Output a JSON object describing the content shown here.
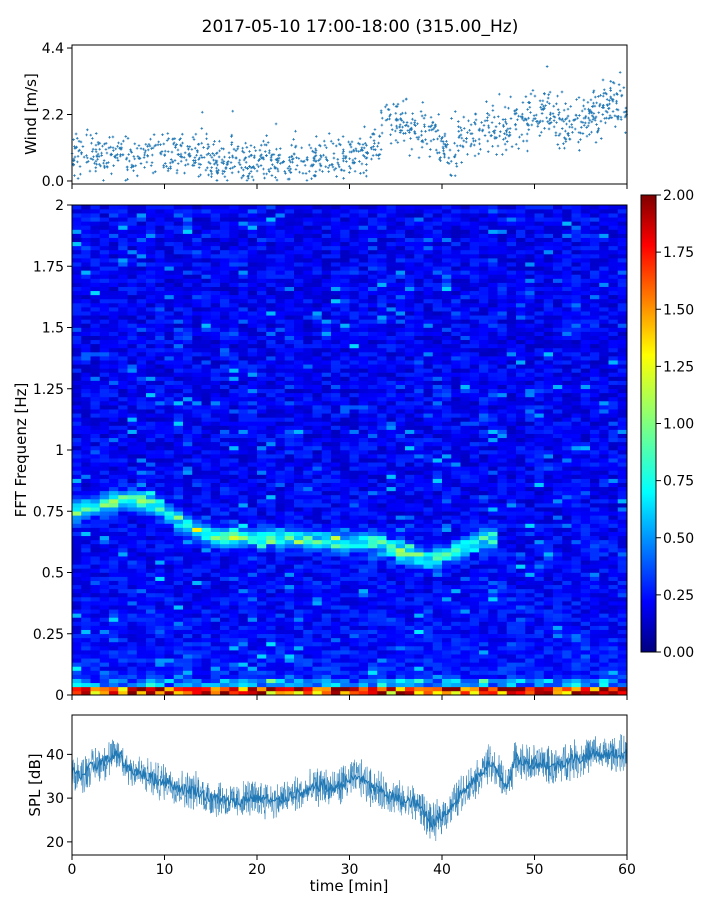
{
  "title": "2017-05-10 17:00-18:00 (315.00_Hz)",
  "chart_data": [
    {
      "type": "scatter",
      "ylabel": "Wind [m/s]",
      "ylim": [
        -0.1,
        4.5
      ],
      "yticks": [
        "0.0",
        "2.2",
        "4.4"
      ],
      "ytick_values": [
        0.0,
        2.2,
        4.4
      ],
      "xlim": [
        0,
        60
      ],
      "color": "#1f77b4",
      "points_x": [
        0,
        1,
        2,
        3,
        4,
        5,
        6,
        7,
        8,
        9,
        10,
        11,
        12,
        13,
        14,
        15,
        16,
        17,
        18,
        19,
        20,
        21,
        22,
        23,
        24,
        25,
        26,
        27,
        28,
        29,
        30,
        31,
        32,
        33,
        34,
        35,
        36,
        37,
        38,
        39,
        40,
        41,
        42,
        43,
        44,
        45,
        46,
        47,
        48,
        49,
        50,
        51,
        52,
        53,
        54,
        55,
        56,
        57,
        58,
        59,
        60
      ],
      "points_y": [
        0.9,
        0.8,
        0.9,
        0.8,
        0.9,
        1.0,
        0.7,
        0.8,
        0.9,
        0.8,
        0.9,
        0.9,
        0.8,
        0.9,
        1.0,
        0.7,
        0.6,
        0.6,
        0.7,
        0.6,
        0.7,
        0.7,
        0.6,
        0.6,
        0.7,
        0.5,
        0.6,
        0.8,
        0.7,
        0.8,
        0.8,
        0.9,
        0.9,
        1.2,
        2.0,
        1.9,
        2.0,
        1.8,
        1.7,
        1.6,
        1.2,
        0.6,
        1.4,
        1.5,
        1.8,
        1.8,
        1.7,
        1.8,
        1.9,
        2.0,
        2.3,
        2.5,
        2.2,
        1.9,
        1.8,
        2.0,
        2.2,
        2.3,
        2.4,
        2.5,
        2.4
      ]
    },
    {
      "type": "heatmap",
      "ylabel": "FFT Frequenz [Hz]",
      "ylim": [
        0,
        2
      ],
      "yticks": [
        "0",
        "0.25",
        "0.5",
        "0.75",
        "1",
        "1.25",
        "1.5",
        "1.75",
        "2"
      ],
      "ytick_values": [
        0,
        0.25,
        0.5,
        0.75,
        1,
        1.25,
        1.5,
        1.75,
        2
      ],
      "xlim": [
        0,
        60
      ],
      "colormap": "jet",
      "colorbar": {
        "min": 0.0,
        "max": 2.0,
        "ticks": [
          "0.00",
          "0.25",
          "0.50",
          "0.75",
          "1.00",
          "1.25",
          "1.50",
          "1.75",
          "2.00"
        ],
        "tick_values": [
          0,
          0.25,
          0.5,
          0.75,
          1.0,
          1.25,
          1.5,
          1.75,
          2.0
        ]
      },
      "ridge_x": [
        0,
        3,
        6,
        9,
        12,
        15,
        18,
        21,
        24,
        27,
        30,
        33,
        36,
        39,
        42,
        45
      ],
      "ridge_y": [
        0.74,
        0.78,
        0.8,
        0.78,
        0.7,
        0.65,
        0.64,
        0.64,
        0.64,
        0.63,
        0.62,
        0.63,
        0.58,
        0.55,
        0.6,
        0.64
      ]
    },
    {
      "type": "line",
      "ylabel": "SPL [dB]",
      "xlabel": "time [min]",
      "xlim": [
        0,
        60
      ],
      "ylim": [
        17,
        49
      ],
      "yticks": [
        "20",
        "30",
        "40"
      ],
      "ytick_values": [
        20,
        30,
        40
      ],
      "xticks": [
        "0",
        "10",
        "20",
        "30",
        "40",
        "50",
        "60"
      ],
      "xtick_values": [
        0,
        10,
        20,
        30,
        40,
        50,
        60
      ],
      "color": "#1f77b4",
      "x": [
        0,
        1,
        2,
        3,
        4,
        5,
        6,
        7,
        8,
        9,
        10,
        11,
        12,
        13,
        14,
        15,
        16,
        17,
        18,
        19,
        20,
        21,
        22,
        23,
        24,
        25,
        26,
        27,
        28,
        29,
        30,
        31,
        32,
        33,
        34,
        35,
        36,
        37,
        38,
        39,
        40,
        41,
        42,
        43,
        44,
        45,
        46,
        47,
        48,
        49,
        50,
        51,
        52,
        53,
        54,
        55,
        56,
        57,
        58,
        59,
        60
      ],
      "y": [
        36,
        35,
        37,
        38,
        39,
        40,
        37,
        36,
        35,
        34,
        34,
        33,
        32,
        32,
        31,
        30,
        30,
        29,
        29,
        30,
        30,
        30,
        29,
        30,
        31,
        31,
        32,
        33,
        32,
        33,
        34,
        35,
        33,
        32,
        31,
        30,
        29,
        29,
        27,
        24,
        26,
        28,
        31,
        33,
        35,
        38,
        36,
        33,
        39,
        38,
        38,
        38,
        37,
        38,
        39,
        39,
        40,
        40,
        40,
        40,
        40
      ]
    }
  ]
}
